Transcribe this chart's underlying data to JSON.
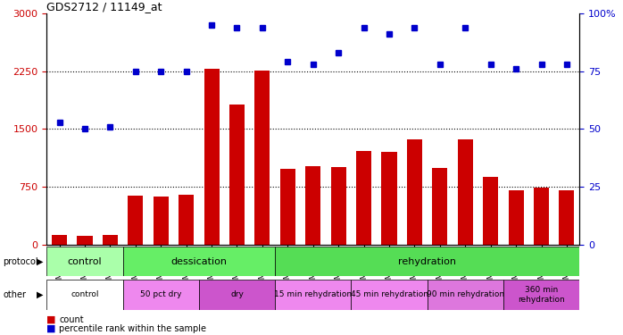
{
  "title": "GDS2712 / 11149_at",
  "samples": [
    "GSM21640",
    "GSM21641",
    "GSM21642",
    "GSM21643",
    "GSM21644",
    "GSM21645",
    "GSM21646",
    "GSM21647",
    "GSM21648",
    "GSM21649",
    "GSM21650",
    "GSM21651",
    "GSM21652",
    "GSM21653",
    "GSM21654",
    "GSM21655",
    "GSM21656",
    "GSM21657",
    "GSM21658",
    "GSM21659",
    "GSM21660"
  ],
  "bar_values": [
    130,
    110,
    130,
    640,
    620,
    650,
    2280,
    1820,
    2260,
    980,
    1020,
    1010,
    1220,
    1200,
    1360,
    990,
    1360,
    880,
    700,
    740,
    700
  ],
  "dot_values_pct": [
    53,
    50,
    51,
    75,
    75,
    75,
    95,
    94,
    94,
    79,
    78,
    83,
    94,
    91,
    94,
    78,
    94,
    78,
    76,
    78,
    78
  ],
  "bar_color": "#cc0000",
  "dot_color": "#0000cc",
  "ylim_left": [
    0,
    3000
  ],
  "ylim_right": [
    0,
    100
  ],
  "yticks_left": [
    0,
    750,
    1500,
    2250,
    3000
  ],
  "ytick_labels_left": [
    "0",
    "750",
    "1500",
    "2250",
    "3000"
  ],
  "yticks_right": [
    0,
    25,
    50,
    75,
    100
  ],
  "ytick_labels_right": [
    "0",
    "25",
    "50",
    "75",
    "100%"
  ],
  "hlines": [
    750,
    1500,
    2250
  ],
  "protocol_groups": [
    {
      "label": "control",
      "start": 0,
      "end": 3,
      "color": "#aaffaa"
    },
    {
      "label": "dessication",
      "start": 3,
      "end": 9,
      "color": "#66ee66"
    },
    {
      "label": "rehydration",
      "start": 9,
      "end": 21,
      "color": "#55dd55"
    }
  ],
  "other_groups": [
    {
      "label": "control",
      "start": 0,
      "end": 3,
      "color": "#ffffff"
    },
    {
      "label": "50 pct dry",
      "start": 3,
      "end": 6,
      "color": "#ee88ee"
    },
    {
      "label": "dry",
      "start": 6,
      "end": 9,
      "color": "#cc55cc"
    },
    {
      "label": "15 min rehydration",
      "start": 9,
      "end": 12,
      "color": "#ee88ee"
    },
    {
      "label": "45 min rehydration",
      "start": 12,
      "end": 15,
      "color": "#ee88ee"
    },
    {
      "label": "90 min rehydration",
      "start": 15,
      "end": 18,
      "color": "#dd77dd"
    },
    {
      "label": "360 min\nrehydration",
      "start": 18,
      "end": 21,
      "color": "#cc55cc"
    }
  ]
}
